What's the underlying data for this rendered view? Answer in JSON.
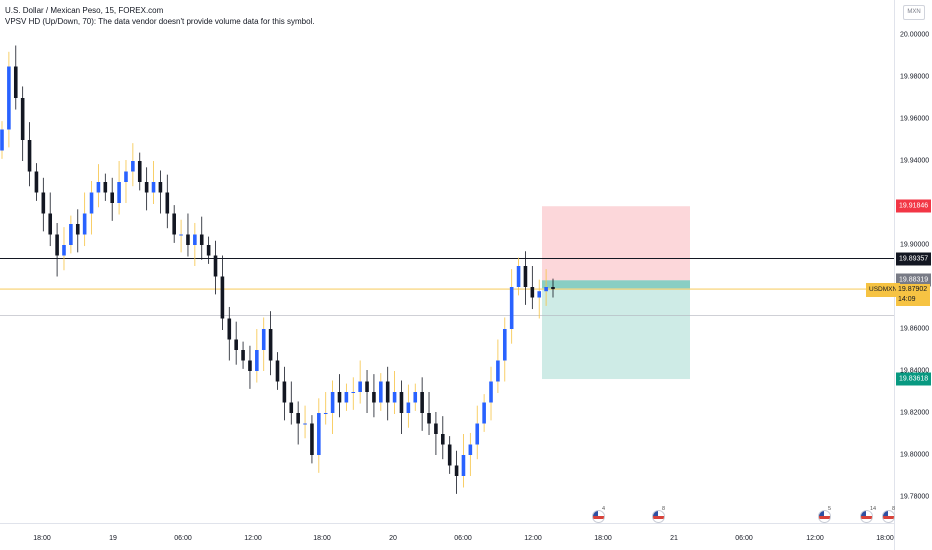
{
  "header": {
    "title": "U.S. Dollar / Mexican Peso, 15, FOREX.com",
    "indicator": "VPSV HD (Up/Down, 70): The data vendor doesn't provide volume data for this symbol."
  },
  "currency_button": "MXN",
  "price_axis": {
    "min": 19.77,
    "max": 20.008,
    "ticks": [
      "20.00000",
      "19.98000",
      "19.96000",
      "19.94000",
      "19.92000",
      "19.90000",
      "19.88000",
      "19.86000",
      "19.84000",
      "19.82000",
      "19.80000",
      "19.78000"
    ],
    "tick_values": [
      20.0,
      19.98,
      19.96,
      19.94,
      19.92,
      19.9,
      19.88,
      19.86,
      19.84,
      19.82,
      19.8,
      19.78
    ]
  },
  "time_axis": {
    "labels": [
      "18:00",
      "19",
      "06:00",
      "12:00",
      "18:00",
      "20",
      "06:00",
      "12:00",
      "18:00",
      "21",
      "06:00",
      "12:00",
      "18:00"
    ]
  },
  "price_tags": {
    "stop": {
      "value": "19.91846",
      "color": "#f23645"
    },
    "horizontal_line": {
      "value": "19.89357",
      "color": "#131722"
    },
    "entry": {
      "value": "19.88319",
      "color": "#787b86"
    },
    "target": {
      "value": "19.83618",
      "color": "#089981"
    }
  },
  "current": {
    "symbol": "USDMXN",
    "price": "19.87902",
    "countdown": "14:09",
    "color": "#f6c343"
  },
  "levels": {
    "horizontal_line": 19.89357,
    "current": 19.87902,
    "lower_dotted": 19.8665,
    "stop": 19.91846,
    "entry": 19.88319,
    "target": 19.83618
  },
  "colors": {
    "up": "#2962ff",
    "down": "#131722",
    "wick_up": "#f6c343",
    "stop_zone": "rgba(242,54,69,0.2)",
    "target_zone": "rgba(8,153,129,0.2)"
  },
  "events": [
    "4",
    "8",
    "5",
    "14",
    "8"
  ],
  "chart_data": {
    "type": "candlestick",
    "title": "U.S. Dollar / Mexican Peso, 15, FOREX.com",
    "ylim": [
      19.77,
      20.008
    ],
    "series": [
      {
        "name": "USDMXN",
        "values": [
          19.955,
          19.985,
          19.97,
          19.95,
          19.935,
          19.925,
          19.915,
          19.905,
          19.895,
          19.9,
          19.91,
          19.905,
          19.915,
          19.925,
          19.93,
          19.925,
          19.92,
          19.93,
          19.935,
          19.94,
          19.93,
          19.925,
          19.93,
          19.925,
          19.915,
          19.905,
          19.905,
          19.9,
          19.905,
          19.9,
          19.895,
          19.885,
          19.865,
          19.855,
          19.85,
          19.845,
          19.84,
          19.85,
          19.86,
          19.845,
          19.835,
          19.825,
          19.82,
          19.815,
          19.815,
          19.8,
          19.82,
          19.82,
          19.83,
          19.825,
          19.83,
          19.83,
          19.835,
          19.83,
          19.825,
          19.835,
          19.825,
          19.83,
          19.82,
          19.825,
          19.83,
          19.82,
          19.815,
          19.81,
          19.805,
          19.795,
          19.79,
          19.8,
          19.805,
          19.815,
          19.825,
          19.835,
          19.845,
          19.86,
          19.88,
          19.89,
          19.88,
          19.875,
          19.878,
          19.88,
          19.879
        ]
      }
    ]
  }
}
